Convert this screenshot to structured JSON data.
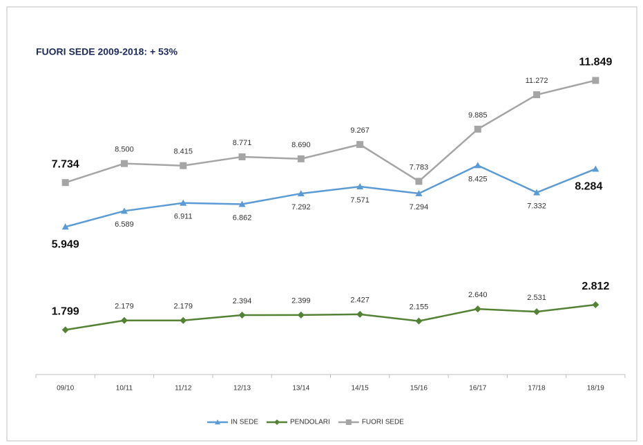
{
  "chart_data": {
    "type": "line",
    "title": "FUORI SEDE 2009-2018: + 53%",
    "categories": [
      "09/10",
      "10/11",
      "11/12",
      "12/13",
      "13/14",
      "14/15",
      "15/16",
      "16/17",
      "17/18",
      "18/19"
    ],
    "ylim": [
      0,
      12500
    ],
    "series": [
      {
        "name": "IN SEDE",
        "color": "#5b9bd5",
        "marker": "triangle",
        "values": [
          5949,
          6589,
          6911,
          6862,
          7292,
          7571,
          7294,
          8425,
          7332,
          8284
        ],
        "value_labels": [
          "5.949",
          "6.589",
          "6.911",
          "6.862",
          "7.292",
          "7.571",
          "7.294",
          "8.425",
          "7.332",
          "8.284"
        ]
      },
      {
        "name": "PENDOLARI",
        "color": "#548235",
        "marker": "diamond",
        "values": [
          1799,
          2179,
          2179,
          2394,
          2399,
          2427,
          2155,
          2640,
          2531,
          2812
        ],
        "value_labels": [
          "1.799",
          "2.179",
          "2.179",
          "2.394",
          "2.399",
          "2.427",
          "2.155",
          "2.640",
          "2.531",
          "2.812"
        ]
      },
      {
        "name": "FUORI SEDE",
        "color": "#a5a5a5",
        "marker": "square",
        "values": [
          7734,
          8500,
          8415,
          8771,
          8690,
          9267,
          7783,
          9885,
          11272,
          11849
        ],
        "value_labels": [
          "7.734",
          "8.500",
          "8.415",
          "8.771",
          "8.690",
          "9.267",
          "7.783",
          "9.885",
          "11.272",
          "11.849"
        ]
      }
    ]
  }
}
